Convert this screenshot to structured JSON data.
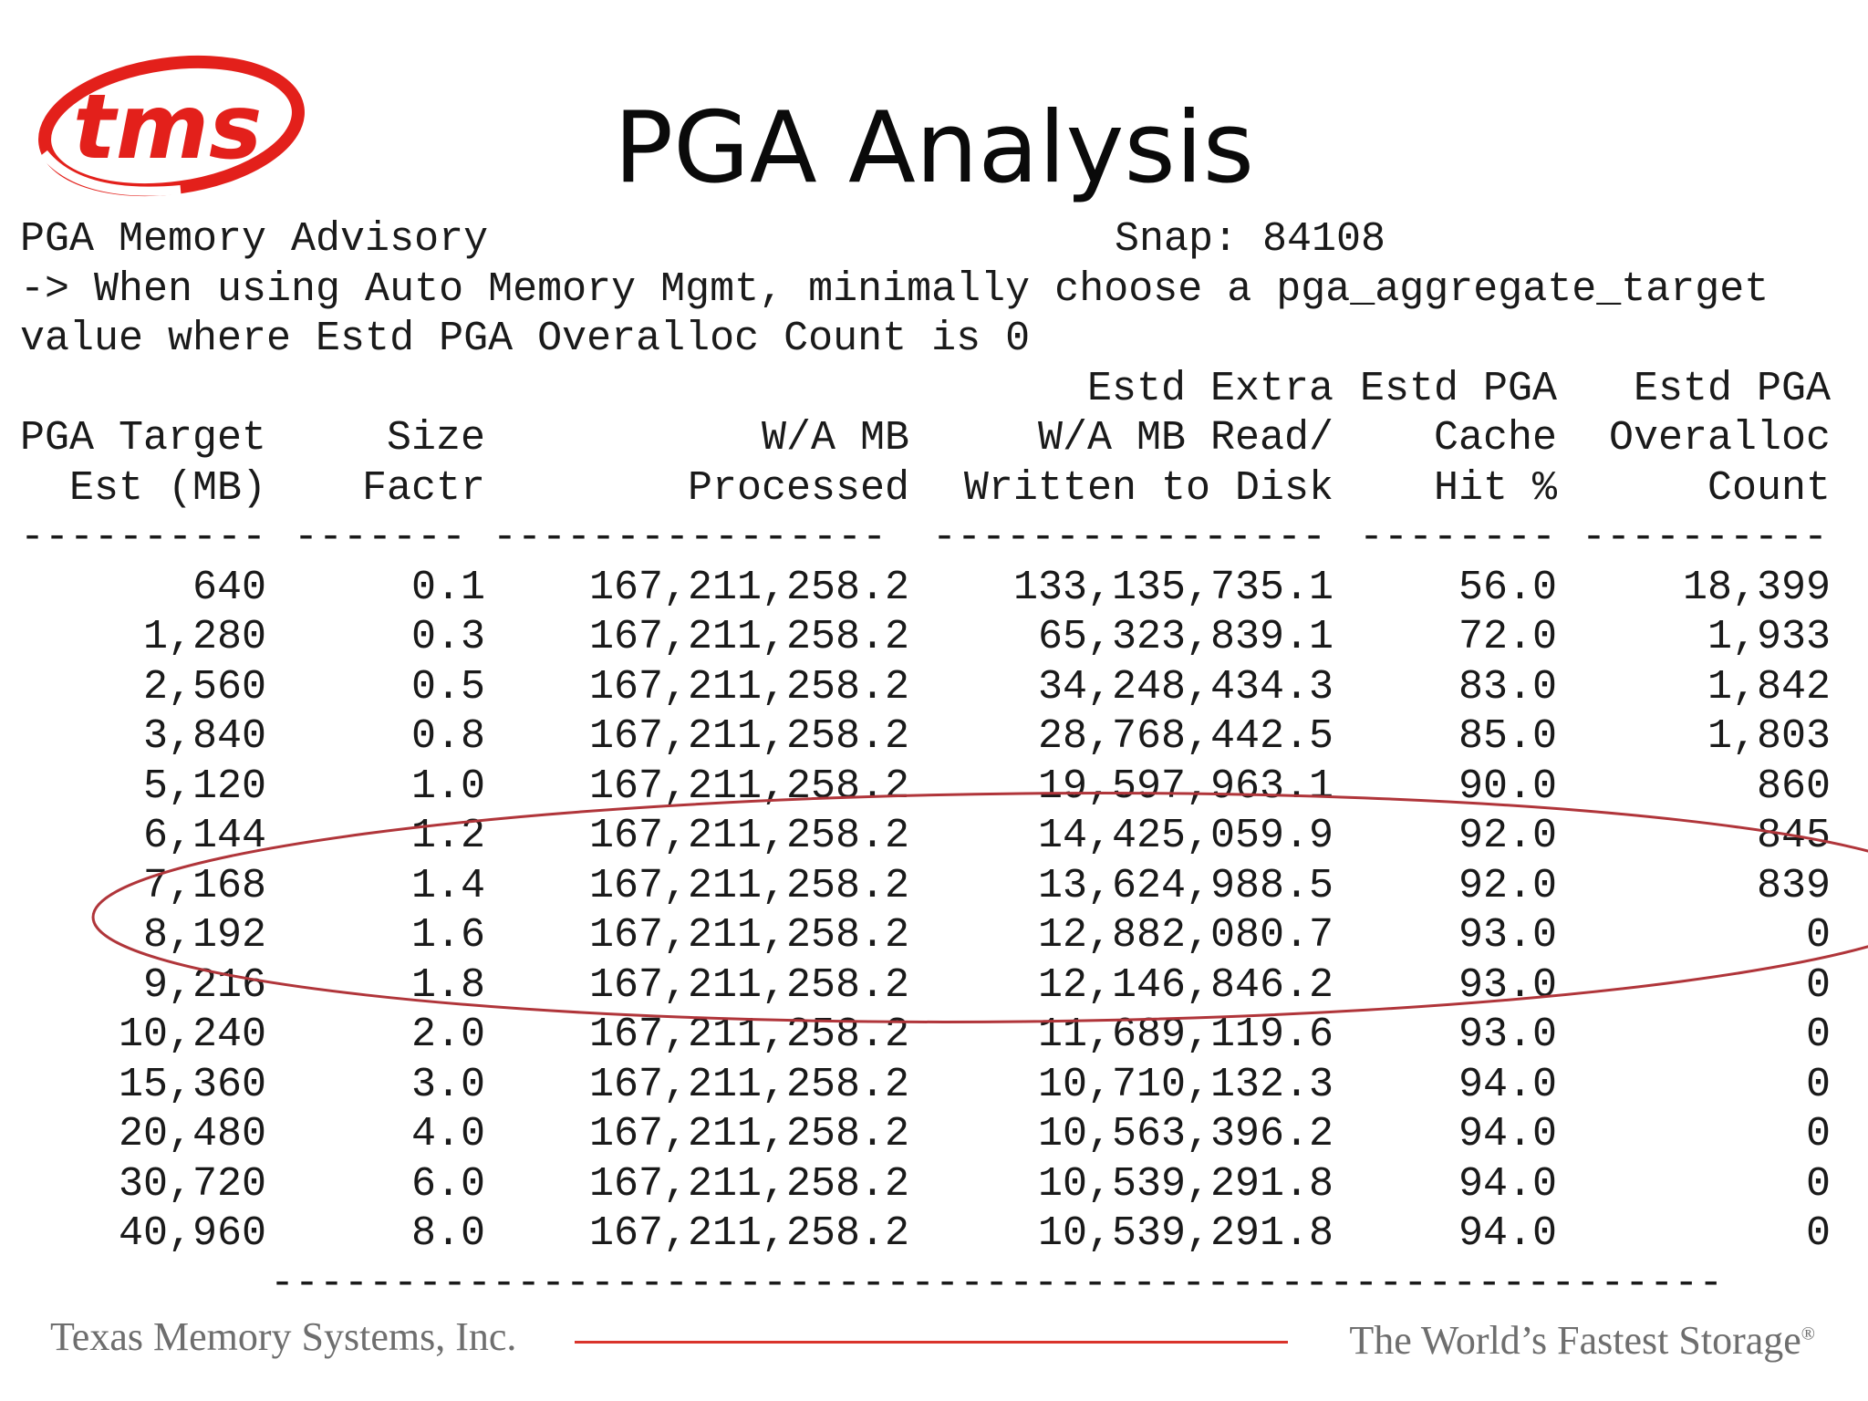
{
  "logo": {
    "text": "tms",
    "color": "#e3201b"
  },
  "title": "PGA Analysis",
  "report": {
    "heading": "PGA Memory Advisory",
    "snap": "Snap: 84108",
    "note_line1": "-> When using Auto Memory Mgmt, minimally choose a pga_aggregate_target",
    "note_line2": "value where Estd PGA Overalloc Count is 0",
    "header_rows": [
      [
        "",
        "",
        "",
        "Estd Extra",
        "Estd PGA",
        "Estd PGA"
      ],
      [
        "PGA Target",
        "Size",
        "W/A MB",
        "W/A MB Read/",
        "Cache",
        "Overalloc"
      ],
      [
        "Est (MB)",
        "Factr",
        "Processed",
        "Written to Disk",
        "Hit %",
        "Count"
      ]
    ],
    "separators": [
      "----------",
      "-------",
      "----------------",
      "----------------",
      "--------",
      "----------"
    ],
    "rows": [
      [
        "640",
        "0.1",
        "167,211,258.2",
        "133,135,735.1",
        "56.0",
        "18,399"
      ],
      [
        "1,280",
        "0.3",
        "167,211,258.2",
        "65,323,839.1",
        "72.0",
        "1,933"
      ],
      [
        "2,560",
        "0.5",
        "167,211,258.2",
        "34,248,434.3",
        "83.0",
        "1,842"
      ],
      [
        "3,840",
        "0.8",
        "167,211,258.2",
        "28,768,442.5",
        "85.0",
        "1,803"
      ],
      [
        "5,120",
        "1.0",
        "167,211,258.2",
        "19,597,963.1",
        "90.0",
        "860"
      ],
      [
        "6,144",
        "1.2",
        "167,211,258.2",
        "14,425,059.9",
        "92.0",
        "845"
      ],
      [
        "7,168",
        "1.4",
        "167,211,258.2",
        "13,624,988.5",
        "92.0",
        "839"
      ],
      [
        "8,192",
        "1.6",
        "167,211,258.2",
        "12,882,080.7",
        "93.0",
        "0"
      ],
      [
        "9,216",
        "1.8",
        "167,211,258.2",
        "12,146,846.2",
        "93.0",
        "0"
      ],
      [
        "10,240",
        "2.0",
        "167,211,258.2",
        "11,689,119.6",
        "93.0",
        "0"
      ],
      [
        "15,360",
        "3.0",
        "167,211,258.2",
        "10,710,132.3",
        "94.0",
        "0"
      ],
      [
        "20,480",
        "4.0",
        "167,211,258.2",
        "10,563,396.2",
        "94.0",
        "0"
      ],
      [
        "30,720",
        "6.0",
        "167,211,258.2",
        "10,539,291.8",
        "94.0",
        "0"
      ],
      [
        "40,960",
        "8.0",
        "167,211,258.2",
        "10,539,291.8",
        "94.0",
        "0"
      ]
    ],
    "bottom_rule": "-----------------------------------------------------------",
    "highlight_color": "#b0353a"
  },
  "footer": {
    "company": "Texas Memory Systems, Inc.",
    "tagline": "The World’s Fastest Storage",
    "tagline_mark": "®",
    "line_color": "#d9342b"
  }
}
